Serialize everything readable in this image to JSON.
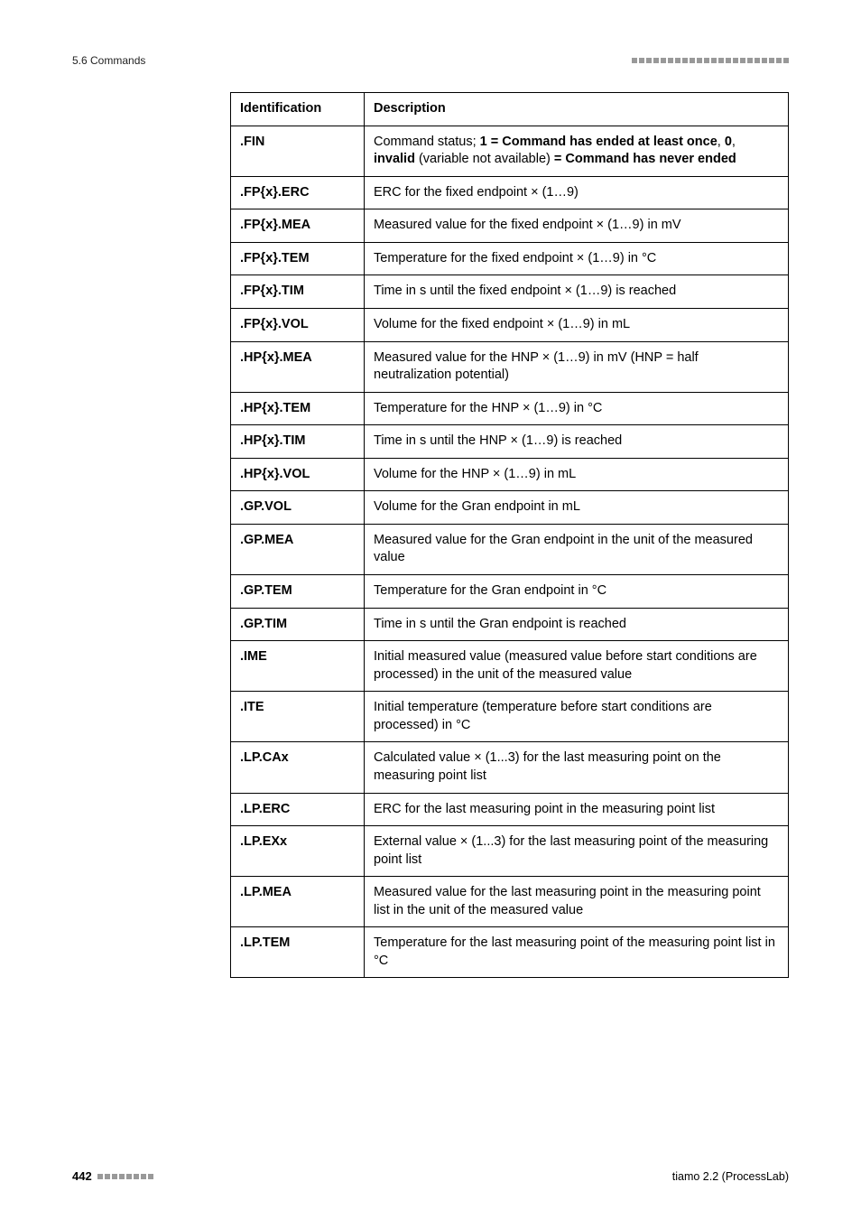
{
  "header": {
    "section": "5.6 Commands"
  },
  "table": {
    "head": {
      "id": "Identification",
      "desc": "Description"
    },
    "rows": [
      {
        "id": ".FIN",
        "desc_html": "Command status; <b>1 = Command has ended at least once</b>, <b>0</b>, <b>invalid</b> (variable not available) <b>= Command has never ended</b>"
      },
      {
        "id": ".FP{x}.ERC",
        "desc_html": "ERC for the fixed endpoint × (1…9)"
      },
      {
        "id": ".FP{x}.MEA",
        "desc_html": "Measured value for the fixed endpoint × (1…9) in mV"
      },
      {
        "id": ".FP{x}.TEM",
        "desc_html": "Temperature for the fixed endpoint × (1…9) in °C"
      },
      {
        "id": ".FP{x}.TIM",
        "desc_html": "Time in s until the fixed endpoint × (1…9) is reached"
      },
      {
        "id": ".FP{x}.VOL",
        "desc_html": "Volume for the fixed endpoint × (1…9) in mL"
      },
      {
        "id": ".HP{x}.MEA",
        "desc_html": "Measured value for the HNP × (1…9) in mV (HNP = half neutralization potential)"
      },
      {
        "id": ".HP{x}.TEM",
        "desc_html": "Temperature for the HNP × (1…9) in °C"
      },
      {
        "id": ".HP{x}.TIM",
        "desc_html": "Time in s until the HNP × (1…9) is reached"
      },
      {
        "id": ".HP{x}.VOL",
        "desc_html": "Volume for the HNP × (1…9) in mL"
      },
      {
        "id": ".GP.VOL",
        "desc_html": "Volume for the Gran endpoint in mL"
      },
      {
        "id": ".GP.MEA",
        "desc_html": "Measured value for the Gran endpoint in the unit of the measured value"
      },
      {
        "id": ".GP.TEM",
        "desc_html": "Temperature for the Gran endpoint in °C"
      },
      {
        "id": ".GP.TIM",
        "desc_html": "Time in s until the Gran endpoint is reached"
      },
      {
        "id": ".IME",
        "desc_html": "Initial measured value (measured value before start conditions are processed) in the unit of the measured value"
      },
      {
        "id": ".ITE",
        "desc_html": "Initial temperature (temperature before start conditions are processed) in °C"
      },
      {
        "id": ".LP.CAx",
        "desc_html": "Calculated value × (1...3) for the last measuring point on the measuring point list"
      },
      {
        "id": ".LP.ERC",
        "desc_html": "ERC for the last measuring point in the measuring point list"
      },
      {
        "id": ".LP.EXx",
        "desc_html": "External value × (1...3) for the last measuring point of the measuring point list"
      },
      {
        "id": ".LP.MEA",
        "desc_html": "Measured value for the last measuring point in the measuring point list in the unit of the measured value"
      },
      {
        "id": ".LP.TEM",
        "desc_html": "Temperature for the last measuring point of the measuring point list in °C"
      }
    ]
  },
  "footer": {
    "page": "442",
    "right": "tiamo 2.2 (ProcessLab)"
  },
  "style": {
    "header_squares": 22,
    "footer_squares": 8
  }
}
